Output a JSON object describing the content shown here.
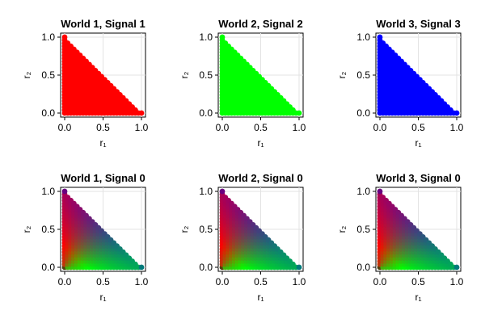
{
  "chart_data": [
    {
      "type": "scatter",
      "title": "World 1, Signal 1",
      "xlabel": "r₁",
      "ylabel": "r₂",
      "xlim": [
        0,
        1
      ],
      "ylim": [
        0,
        1
      ],
      "xticks": [
        "0.0",
        "0.5",
        "1.0"
      ],
      "yticks": [
        "0.0",
        "0.5",
        "1.0"
      ],
      "grid": true,
      "points": "simplex lattice r1 + r2 ≤ 1, step 0.04",
      "coloring": "solid",
      "color": "#ff0000"
    },
    {
      "type": "scatter",
      "title": "World 2, Signal 2",
      "xlabel": "r₁",
      "ylabel": "r₂",
      "xlim": [
        0,
        1
      ],
      "ylim": [
        0,
        1
      ],
      "xticks": [
        "0.0",
        "0.5",
        "1.0"
      ],
      "yticks": [
        "0.0",
        "0.5",
        "1.0"
      ],
      "grid": true,
      "points": "simplex lattice r1 + r2 ≤ 1, step 0.04",
      "coloring": "solid",
      "color": "#00ff00"
    },
    {
      "type": "scatter",
      "title": "World 3, Signal 3",
      "xlabel": "r₁",
      "ylabel": "r₂",
      "xlim": [
        0,
        1
      ],
      "ylim": [
        0,
        1
      ],
      "xticks": [
        "0.0",
        "0.5",
        "1.0"
      ],
      "yticks": [
        "0.0",
        "0.5",
        "1.0"
      ],
      "grid": true,
      "points": "simplex lattice r1 + r2 ≤ 1, step 0.04",
      "coloring": "solid",
      "color": "#0000ff"
    },
    {
      "type": "scatter",
      "title": "World 1, Signal 0",
      "xlabel": "r₁",
      "ylabel": "r₂",
      "xlim": [
        0,
        1
      ],
      "ylim": [
        0,
        1
      ],
      "xticks": [
        "0.0",
        "0.5",
        "1.0"
      ],
      "yticks": [
        "0.0",
        "0.5",
        "1.0"
      ],
      "grid": true,
      "points": "simplex lattice r1 + r2 ≤ 1, step 0.04",
      "coloring": "gradient",
      "gradient": {
        "corner_origin": "#806a14",
        "near_origin": "#ff0000",
        "toward_r1_axis": "#00ff00",
        "toward_r2_top": "#6a0080",
        "toward_hypotenuse": "#0000ff",
        "corner_r1": "#007a7a"
      }
    },
    {
      "type": "scatter",
      "title": "World 2, Signal 0",
      "xlabel": "r₁",
      "ylabel": "r₂",
      "xlim": [
        0,
        1
      ],
      "ylim": [
        0,
        1
      ],
      "xticks": [
        "0.0",
        "0.5",
        "1.0"
      ],
      "yticks": [
        "0.0",
        "0.5",
        "1.0"
      ],
      "grid": true,
      "points": "simplex lattice r1 + r2 ≤ 1, step 0.04",
      "coloring": "gradient",
      "gradient": {
        "corner_origin": "#806a14",
        "near_origin": "#ff0000",
        "toward_r1_axis": "#00ff00",
        "toward_r2_top": "#6a0080",
        "toward_hypotenuse": "#0000ff",
        "corner_r1": "#007a7a"
      }
    },
    {
      "type": "scatter",
      "title": "World 3, Signal 0",
      "xlabel": "r₁",
      "ylabel": "r₂",
      "xlim": [
        0,
        1
      ],
      "ylim": [
        0,
        1
      ],
      "xticks": [
        "0.0",
        "0.5",
        "1.0"
      ],
      "yticks": [
        "0.0",
        "0.5",
        "1.0"
      ],
      "grid": true,
      "points": "simplex lattice r1 + r2 ≤ 1, step 0.04",
      "coloring": "gradient",
      "gradient": {
        "corner_origin": "#806a14",
        "near_origin": "#ff0000",
        "toward_r1_axis": "#00ff00",
        "toward_r2_top": "#6a0080",
        "toward_hypotenuse": "#0000ff",
        "corner_r1": "#007a7a"
      }
    }
  ]
}
